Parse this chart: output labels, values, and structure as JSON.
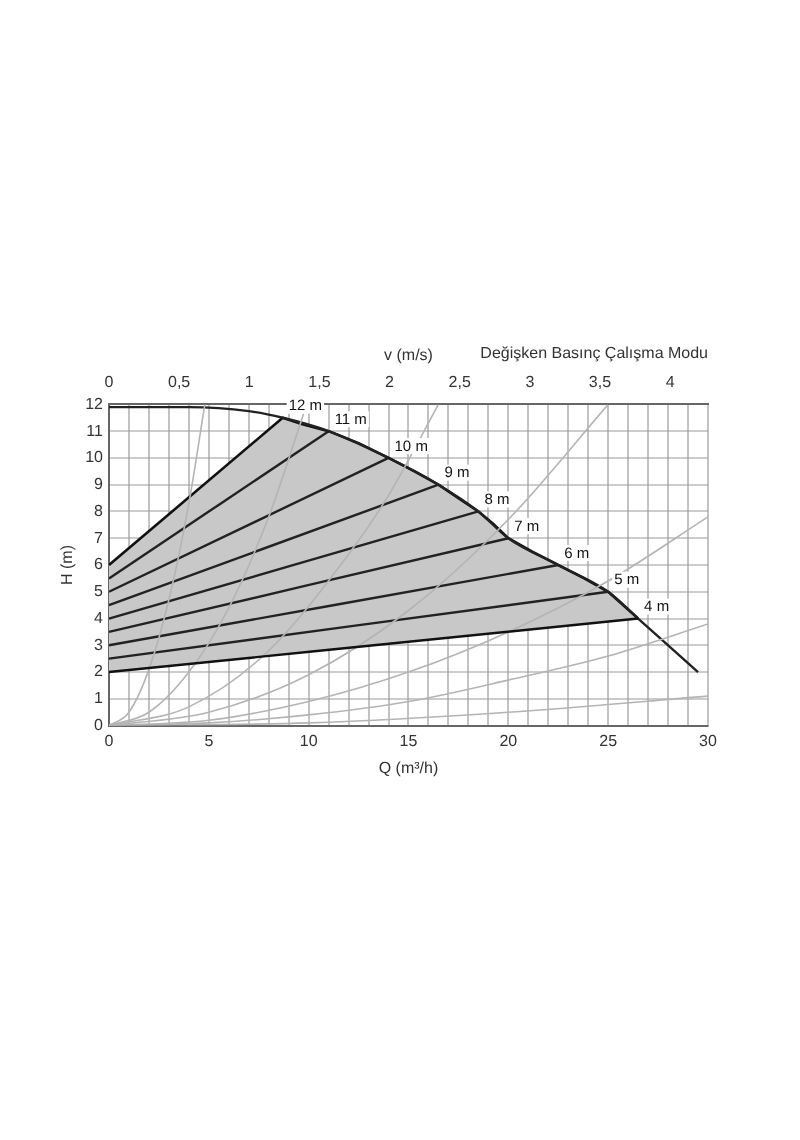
{
  "chart_data": {
    "type": "line",
    "title": "Değişken Basınç Çalışma Modu",
    "xlabel": "Q (m³/h)",
    "ylabel": "H (m)",
    "x2label": "v (m/s)",
    "xlim": [
      0,
      30
    ],
    "xticks": [
      0,
      {
        "value": 1,
        "label": null
      },
      {
        "value": 2,
        "label": null
      },
      {
        "value": 3,
        "label": null
      },
      {
        "value": 4,
        "label": null
      },
      5,
      {
        "value": 6,
        "label": null
      },
      {
        "value": 7,
        "label": null
      },
      {
        "value": 8,
        "label": null
      },
      {
        "value": 9,
        "label": null
      },
      10,
      {
        "value": 11,
        "label": null
      },
      {
        "value": 12,
        "label": null
      },
      {
        "value": 13,
        "label": null
      },
      {
        "value": 14,
        "label": null
      },
      15,
      {
        "value": 16,
        "label": null
      },
      {
        "value": 17,
        "label": null
      },
      {
        "value": 18,
        "label": null
      },
      {
        "value": 19,
        "label": null
      },
      20,
      {
        "value": 21,
        "label": null
      },
      {
        "value": 22,
        "label": null
      },
      {
        "value": 23,
        "label": null
      },
      {
        "value": 24,
        "label": null
      },
      25,
      {
        "value": 26,
        "label": null
      },
      {
        "value": 27,
        "label": null
      },
      {
        "value": 28,
        "label": null
      },
      {
        "value": 29,
        "label": null
      },
      30
    ],
    "x2lim": [
      0,
      4.27
    ],
    "x2ticks": [
      0,
      {
        "value": 0.5,
        "label": "0,5"
      },
      1,
      {
        "value": 1.5,
        "label": "1,5"
      },
      2,
      {
        "value": 2.5,
        "label": "2,5"
      },
      3,
      {
        "value": 3.5,
        "label": "3,5"
      },
      4
    ],
    "ylim": [
      0,
      12
    ],
    "yticks": [
      0,
      1,
      2,
      3,
      4,
      5,
      6,
      7,
      8,
      9,
      10,
      11,
      12
    ],
    "grid": true,
    "legend": false,
    "annotations": [
      {
        "text": "12 m",
        "x": 8.7,
        "y": 11.5
      }
    ],
    "marker": "none",
    "series": [
      {
        "type": "area",
        "color": "#c8c8c8",
        "x": [
          0,
          8.7,
          9.5,
          11,
          12.5,
          14,
          15.3,
          16.5,
          17.5,
          18.5,
          19.3,
          20,
          21.2,
          22.5,
          23.8,
          25,
          26.5
        ],
        "values": [
          6,
          11.5,
          11.3,
          11,
          10.55,
          10,
          9.5,
          9,
          8.5,
          8,
          7.5,
          7,
          6.5,
          6,
          5.5,
          5,
          4
        ]
      },
      {
        "name": "4 m",
        "color": "#111111",
        "x": [
          0,
          26.5
        ],
        "values": [
          2,
          4
        ]
      },
      {
        "color": "#b4b4b4",
        "x": [
          0,
          1,
          2,
          3,
          4,
          4.8
        ],
        "values": [
          0,
          0.5,
          2.1,
          4.7,
          8.3,
          12
        ]
      },
      {
        "color": "#b4b4b4",
        "x": [
          0,
          2,
          4,
          6,
          8,
          9.9
        ],
        "values": [
          0,
          0.5,
          2,
          4.4,
          7.8,
          12
        ]
      },
      {
        "color": "#b4b4b4",
        "x": [
          0,
          4,
          8,
          12,
          14,
          16.5
        ],
        "values": [
          0,
          0.7,
          2.8,
          6.4,
          8.6,
          12
        ]
      },
      {
        "color": "#b4b4b4",
        "x": [
          0,
          5,
          10,
          15,
          20,
          25
        ],
        "values": [
          0,
          0.5,
          1.9,
          4.3,
          7.7,
          12
        ]
      },
      {
        "color": "#b4b4b4",
        "x": [
          0,
          5,
          10,
          15,
          20,
          25,
          30
        ],
        "values": [
          0,
          0.2,
          0.9,
          2,
          3.5,
          5.4,
          7.8
        ]
      },
      {
        "color": "#b4b4b4",
        "x": [
          0,
          5,
          10,
          15,
          20,
          25,
          30
        ],
        "values": [
          0,
          0.1,
          0.4,
          0.9,
          1.7,
          2.6,
          3.8
        ]
      },
      {
        "color": "#b4b4b4",
        "x": [
          0,
          10,
          20,
          30
        ],
        "values": [
          0,
          0.1,
          0.5,
          1.1
        ]
      },
      {
        "color": "#222222",
        "x": [
          0,
          4,
          7,
          8.7,
          11,
          14,
          16.5,
          18.5,
          20,
          22.5,
          25,
          26.5,
          29.5
        ],
        "values": [
          11.9,
          11.9,
          11.75,
          11.5,
          11,
          10,
          9,
          8,
          7,
          6,
          5,
          4,
          2
        ]
      },
      {
        "name": "11 m",
        "color": "#222222",
        "x": [
          0,
          11
        ],
        "values": [
          5.5,
          11
        ]
      },
      {
        "name": "10 m",
        "color": "#222222",
        "x": [
          0,
          14
        ],
        "values": [
          5,
          10
        ]
      },
      {
        "name": "9 m",
        "color": "#222222",
        "x": [
          0,
          16.5
        ],
        "values": [
          4.5,
          9
        ]
      },
      {
        "name": "8 m",
        "color": "#222222",
        "x": [
          0,
          18.5
        ],
        "values": [
          4,
          8
        ]
      },
      {
        "name": "7 m",
        "color": "#222222",
        "x": [
          0,
          20
        ],
        "values": [
          3.5,
          7
        ]
      },
      {
        "name": "6 m",
        "color": "#222222",
        "x": [
          0,
          22.5
        ],
        "values": [
          3,
          6
        ]
      },
      {
        "name": "5 m",
        "color": "#222222",
        "x": [
          0,
          25
        ],
        "values": [
          2.5,
          5
        ]
      }
    ]
  }
}
